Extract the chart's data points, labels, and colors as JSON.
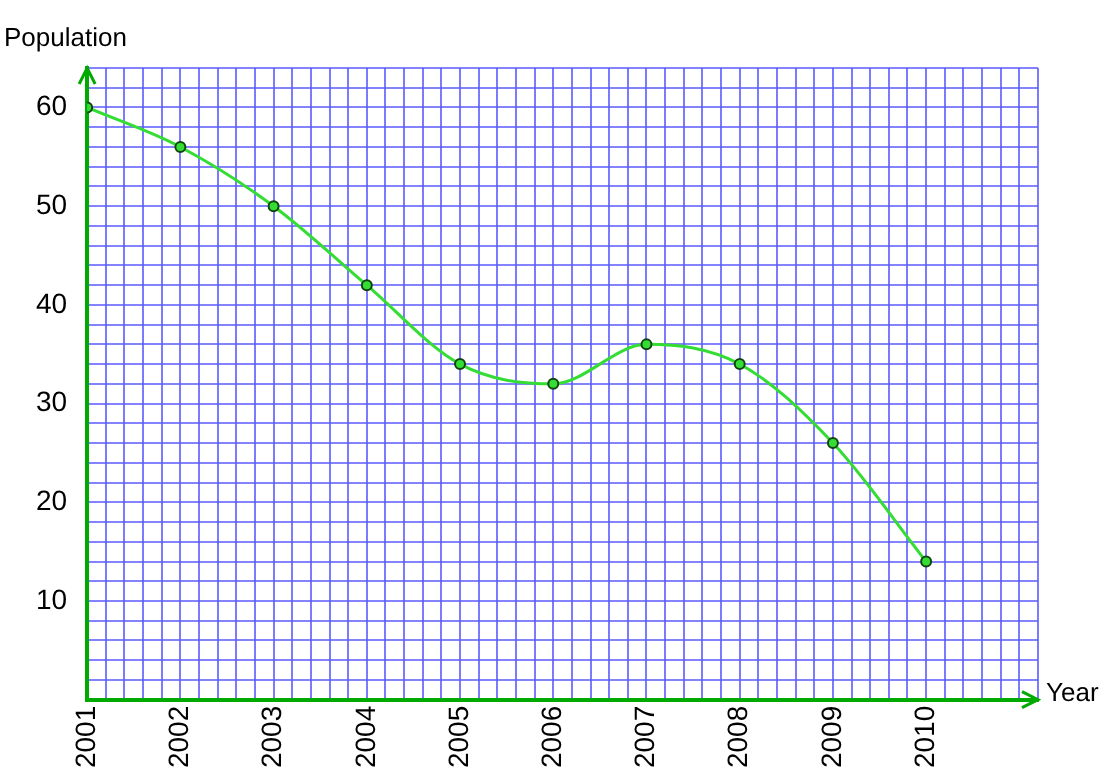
{
  "chart_data": {
    "type": "line",
    "xlabel": "Year",
    "ylabel": "Population",
    "x": [
      2001,
      2002,
      2003,
      2004,
      2005,
      2006,
      2007,
      2008,
      2009,
      2010
    ],
    "series": [
      {
        "color": "#33dd33",
        "values": [
          60,
          56,
          50,
          42,
          34,
          32,
          36,
          34,
          26,
          14
        ]
      }
    ],
    "xlim": [
      2001,
      2011.2
    ],
    "xticks": [
      2001,
      {
        "value": 2001.2,
        "label": null
      },
      {
        "value": 2001.4,
        "label": null
      },
      {
        "value": 2001.6,
        "label": null
      },
      {
        "value": 2001.8,
        "label": null
      },
      2002,
      {
        "value": 2002.2,
        "label": null
      },
      {
        "value": 2002.4,
        "label": null
      },
      {
        "value": 2002.6,
        "label": null
      },
      {
        "value": 2002.8,
        "label": null
      },
      2003,
      {
        "value": 2003.2,
        "label": null
      },
      {
        "value": 2003.4,
        "label": null
      },
      {
        "value": 2003.6,
        "label": null
      },
      {
        "value": 2003.8,
        "label": null
      },
      2004,
      {
        "value": 2004.2,
        "label": null
      },
      {
        "value": 2004.4,
        "label": null
      },
      {
        "value": 2004.6,
        "label": null
      },
      {
        "value": 2004.8,
        "label": null
      },
      2005,
      {
        "value": 2005.2,
        "label": null
      },
      {
        "value": 2005.4,
        "label": null
      },
      {
        "value": 2005.6,
        "label": null
      },
      {
        "value": 2005.8,
        "label": null
      },
      2006,
      {
        "value": 2006.2,
        "label": null
      },
      {
        "value": 2006.4,
        "label": null
      },
      {
        "value": 2006.6,
        "label": null
      },
      {
        "value": 2006.8,
        "label": null
      },
      2007,
      {
        "value": 2007.2,
        "label": null
      },
      {
        "value": 2007.4,
        "label": null
      },
      {
        "value": 2007.6,
        "label": null
      },
      {
        "value": 2007.8,
        "label": null
      },
      2008,
      {
        "value": 2008.2,
        "label": null
      },
      {
        "value": 2008.4,
        "label": null
      },
      {
        "value": 2008.6,
        "label": null
      },
      {
        "value": 2008.8,
        "label": null
      },
      2009,
      {
        "value": 2009.2,
        "label": null
      },
      {
        "value": 2009.4,
        "label": null
      },
      {
        "value": 2009.6,
        "label": null
      },
      {
        "value": 2009.8,
        "label": null
      },
      2010,
      {
        "value": 2010.2,
        "label": null
      },
      {
        "value": 2010.4,
        "label": null
      },
      {
        "value": 2010.6,
        "label": null
      },
      {
        "value": 2010.8,
        "label": null
      },
      {
        "value": 2011,
        "label": null
      },
      {
        "value": 2011.2,
        "label": null
      }
    ],
    "ylim": [
      0,
      64
    ],
    "yticks": [
      {
        "value": 0,
        "label": null
      },
      {
        "value": 2,
        "label": null
      },
      {
        "value": 4,
        "label": null
      },
      {
        "value": 6,
        "label": null
      },
      {
        "value": 8,
        "label": null
      },
      10,
      {
        "value": 12,
        "label": null
      },
      {
        "value": 14,
        "label": null
      },
      {
        "value": 16,
        "label": null
      },
      {
        "value": 18,
        "label": null
      },
      20,
      {
        "value": 22,
        "label": null
      },
      {
        "value": 24,
        "label": null
      },
      {
        "value": 26,
        "label": null
      },
      {
        "value": 28,
        "label": null
      },
      30,
      {
        "value": 32,
        "label": null
      },
      {
        "value": 34,
        "label": null
      },
      {
        "value": 36,
        "label": null
      },
      {
        "value": 38,
        "label": null
      },
      40,
      {
        "value": 42,
        "label": null
      },
      {
        "value": 44,
        "label": null
      },
      {
        "value": 46,
        "label": null
      },
      {
        "value": 48,
        "label": null
      },
      50,
      {
        "value": 52,
        "label": null
      },
      {
        "value": 54,
        "label": null
      },
      {
        "value": 56,
        "label": null
      },
      {
        "value": 58,
        "label": null
      },
      60,
      {
        "value": 62,
        "label": null
      },
      {
        "value": 64,
        "label": null
      }
    ],
    "grid": true,
    "marker": "circle",
    "line_style": "solid",
    "legend": false
  }
}
